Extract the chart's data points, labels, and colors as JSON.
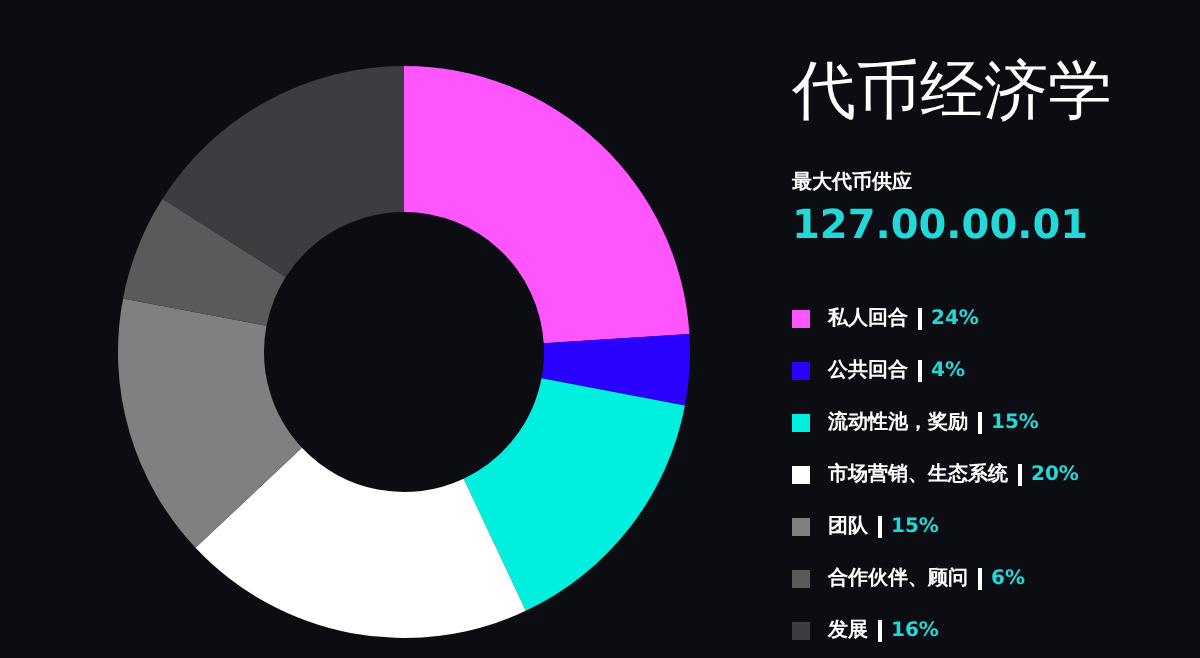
{
  "chart_data": {
    "type": "donut",
    "title": "代币经济学",
    "subtitle": "最大代币供应",
    "annotations": [
      "127.00.00.01"
    ],
    "categories": [
      "私人回合",
      "公共回合",
      "流动性池，奖励",
      "市场营销、生态系统",
      "团队",
      "合作伙伴、顾问",
      "发展"
    ],
    "values": [
      24,
      4,
      15,
      20,
      15,
      6,
      16
    ],
    "value_labels": [
      "24%",
      "4%",
      "15%",
      "20%",
      "15%",
      "6%",
      "16%"
    ],
    "colors": [
      "#ff55ff",
      "#2a00ff",
      "#00f0e0",
      "#ffffff",
      "#808080",
      "#5a5a5a",
      "#3c3d40"
    ],
    "legend": "right"
  }
}
